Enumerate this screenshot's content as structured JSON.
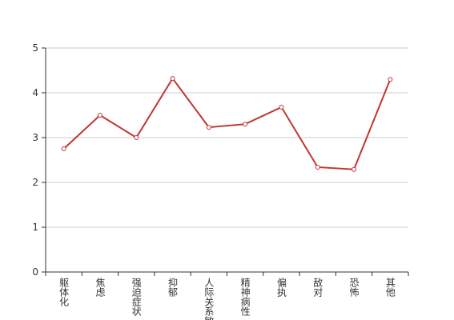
{
  "chart_data": {
    "type": "line",
    "categories": [
      "躯体化",
      "焦虑",
      "强迫症状",
      "抑郁",
      "人际关系敏感",
      "精神病性",
      "偏执",
      "敌对",
      "恐怖",
      "其他"
    ],
    "series": [
      {
        "name": null,
        "color": "#c23531",
        "values": [
          2.75,
          3.5,
          3.0,
          4.32,
          3.23,
          3.3,
          3.68,
          2.34,
          2.29,
          4.3
        ]
      }
    ],
    "ylim": [
      0,
      5
    ],
    "yticks": [
      0,
      1,
      2,
      3,
      4,
      5
    ],
    "grid": true
  }
}
